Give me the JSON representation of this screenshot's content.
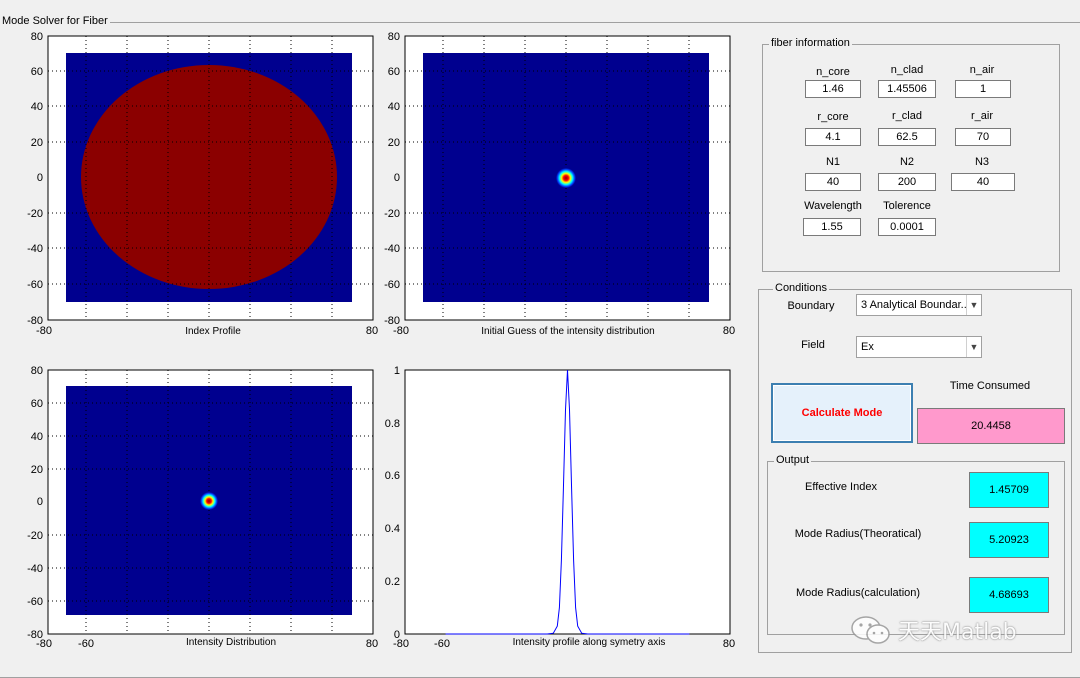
{
  "window": {
    "title": "Mode Solver for Fiber"
  },
  "plots": {
    "index_profile": {
      "xlabel": "Index Profile",
      "xticks": [
        "-80",
        "80"
      ],
      "yticks": [
        "80",
        "60",
        "40",
        "20",
        "0",
        "-20",
        "-40",
        "-60",
        "-80"
      ]
    },
    "initial_guess": {
      "xlabel": "Initial Guess of the intensity distribution",
      "xticks": [
        "-80",
        "80"
      ],
      "yticks": [
        "80",
        "60",
        "40",
        "20",
        "0",
        "-20",
        "-40",
        "-60",
        "-80"
      ]
    },
    "intensity_distribution": {
      "xlabel": "Intensity Distribution",
      "xticks": [
        "-80",
        "-60",
        "80"
      ],
      "yticks": [
        "80",
        "60",
        "40",
        "20",
        "0",
        "-20",
        "-40",
        "-60",
        "-80"
      ]
    },
    "intensity_profile": {
      "xlabel": "Intensity profile along symetry axis",
      "xticks": [
        "-80",
        "-60",
        "80"
      ],
      "yticks": [
        "1",
        "0.8",
        "0.6",
        "0.4",
        "0.2",
        "0"
      ]
    }
  },
  "chart_data": [
    {
      "type": "heatmap",
      "xlabel": "Index Profile",
      "xlim": [
        -80,
        80
      ],
      "ylim": [
        -80,
        80
      ],
      "background": "#00008f",
      "core_color": "#8b0000",
      "domain": [
        -70,
        70
      ],
      "core_radius": 62.5
    },
    {
      "type": "heatmap",
      "xlabel": "Initial Guess of the intensity distribution",
      "xlim": [
        -80,
        80
      ],
      "ylim": [
        -80,
        80
      ],
      "background": "#00008f",
      "domain": [
        -70,
        70
      ],
      "spot_center": [
        0,
        0
      ]
    },
    {
      "type": "heatmap",
      "xlabel": "Intensity Distribution",
      "xlim": [
        -80,
        80
      ],
      "ylim": [
        -80,
        80
      ],
      "background": "#00008f",
      "domain": [
        -70,
        70
      ],
      "spot_center": [
        0,
        0
      ]
    },
    {
      "type": "line",
      "xlabel": "Intensity profile along symetry axis",
      "xlim": [
        -80,
        80
      ],
      "ylim": [
        0,
        1
      ],
      "series": [
        {
          "color": "#0000ff",
          "x": [
            -60,
            -10,
            -7,
            -5,
            -4,
            -3,
            -2,
            -1,
            0,
            1,
            2,
            3,
            4,
            5,
            7,
            10,
            60
          ],
          "y": [
            0,
            0,
            0.003,
            0.03,
            0.1,
            0.28,
            0.55,
            0.85,
            1.0,
            0.85,
            0.55,
            0.28,
            0.1,
            0.03,
            0.003,
            0,
            0
          ]
        }
      ]
    }
  ],
  "fiber_info": {
    "title": "fiber information",
    "n_core_label": "n_core",
    "n_core": "1.46",
    "n_clad_label": "n_clad",
    "n_clad": "1.45506",
    "n_air_label": "n_air",
    "n_air": "1",
    "r_core_label": "r_core",
    "r_core": "4.1",
    "r_clad_label": "r_clad",
    "r_clad": "62.5",
    "r_air_label": "r_air",
    "r_air": "70",
    "N1_label": "N1",
    "N1": "40",
    "N2_label": "N2",
    "N2": "200",
    "N3_label": "N3",
    "N3": "40",
    "wavelength_label": "Wavelength",
    "wavelength": "1.55",
    "tolerence_label": "Tolerence",
    "tolerence": "0.0001"
  },
  "conditions": {
    "title": "Conditions",
    "boundary_label": "Boundary",
    "boundary_value": "3 Analytical Boundar...",
    "field_label": "Field",
    "field_value": "Ex",
    "calculate_label": "Calculate Mode",
    "calculate_color": "#ff0000",
    "time_label": "Time Consumed",
    "time_value": "20.4458",
    "time_bg": "#ff99cc"
  },
  "output": {
    "title": "Output",
    "effective_index_label": "Effective Index",
    "effective_index": "1.45709",
    "mode_radius_theo_label": "Mode Radius(Theoratical)",
    "mode_radius_theo": "5.20923",
    "mode_radius_calc_label": "Mode Radius(calculation)",
    "mode_radius_calc": "4.68693",
    "output_bg": "#00ffff"
  },
  "watermark": {
    "text": "天天Matlab"
  }
}
